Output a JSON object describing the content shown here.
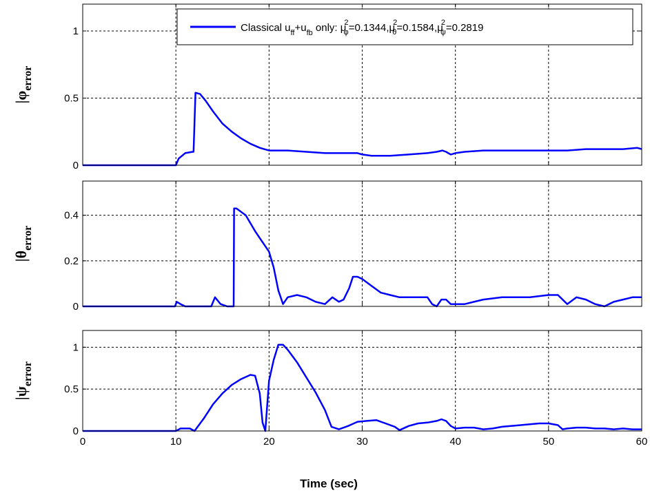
{
  "figure": {
    "xlabel": "Time (sec)",
    "line_color": "#0000ff",
    "legend": {
      "label": "Classical u",
      "sub_ff": "ff",
      "plus": "+u",
      "sub_fb": "fb",
      "mid": " only:  μ",
      "sup2": "2",
      "phi_sub": "φ",
      "phi_val": "=0.1344,μ",
      "theta_sub": "θ",
      "theta_val": "=0.1584,μ",
      "psi_sub": "ψ",
      "psi_val": "=0.2819"
    }
  },
  "chart_data": [
    {
      "type": "line",
      "ylabel_base": "|φ",
      "ylabel_sub": "error",
      "xlim": [
        0,
        60
      ],
      "ylim": [
        0,
        1.2
      ],
      "yticks": [
        0,
        0.5,
        1
      ],
      "ytick_labels": [
        "0",
        "0.5",
        "1"
      ],
      "xticks": [
        0,
        10,
        20,
        30,
        40,
        50,
        60
      ],
      "xtick_labels": [],
      "grid": true,
      "legend_position": "top-right",
      "series": [
        {
          "x": [
            0,
            10,
            10.3,
            11,
            11.8,
            11.9,
            12.1,
            12.6,
            13.2,
            14,
            15,
            16,
            17,
            18,
            19,
            20,
            22,
            24,
            26,
            28,
            29.5,
            30,
            31,
            33,
            35,
            37,
            38,
            38.6,
            39,
            39.5,
            40,
            41,
            43,
            45,
            48,
            50,
            52,
            54,
            56,
            58,
            59.5,
            60
          ],
          "y": [
            0,
            0,
            0.05,
            0.09,
            0.1,
            0.1,
            0.54,
            0.53,
            0.48,
            0.4,
            0.31,
            0.25,
            0.2,
            0.16,
            0.13,
            0.11,
            0.11,
            0.1,
            0.09,
            0.09,
            0.09,
            0.08,
            0.07,
            0.07,
            0.08,
            0.09,
            0.1,
            0.11,
            0.1,
            0.08,
            0.09,
            0.1,
            0.11,
            0.11,
            0.11,
            0.11,
            0.11,
            0.12,
            0.12,
            0.12,
            0.13,
            0.12
          ]
        }
      ]
    },
    {
      "type": "line",
      "ylabel_base": "|θ",
      "ylabel_sub": "error",
      "xlim": [
        0,
        60
      ],
      "ylim": [
        0,
        0.55
      ],
      "yticks": [
        0,
        0.2,
        0.4
      ],
      "ytick_labels": [
        "0",
        "0.2",
        "0.4"
      ],
      "xticks": [
        0,
        10,
        20,
        30,
        40,
        50,
        60
      ],
      "xtick_labels": [],
      "grid": true,
      "series": [
        {
          "x": [
            0,
            9.9,
            10.1,
            10.5,
            11,
            12,
            13,
            13.8,
            14.2,
            14.8,
            15.5,
            16.2,
            16.25,
            16.5,
            17.5,
            18.5,
            19.5,
            20,
            20.5,
            21,
            21.5,
            22,
            23,
            24,
            25,
            26,
            26.8,
            27.5,
            28,
            28.6,
            29,
            29.5,
            30,
            31,
            32,
            33,
            34,
            35,
            36,
            37,
            37.5,
            38,
            38.5,
            39,
            39.5,
            40,
            41,
            42,
            43,
            45,
            48,
            50,
            51,
            52,
            53,
            54,
            55,
            56,
            57,
            58,
            59,
            60
          ],
          "y": [
            0,
            0,
            0.02,
            0.01,
            0,
            0,
            0,
            0,
            0.04,
            0.01,
            0,
            0,
            0.43,
            0.43,
            0.4,
            0.33,
            0.27,
            0.24,
            0.17,
            0.07,
            0.01,
            0.04,
            0.05,
            0.04,
            0.02,
            0.01,
            0.04,
            0.02,
            0.03,
            0.08,
            0.13,
            0.13,
            0.12,
            0.09,
            0.06,
            0.05,
            0.04,
            0.04,
            0.04,
            0.04,
            0.01,
            0,
            0.03,
            0.03,
            0.01,
            0.01,
            0.01,
            0.02,
            0.03,
            0.04,
            0.04,
            0.05,
            0.05,
            0.01,
            0.04,
            0.03,
            0.01,
            0.0,
            0.02,
            0.03,
            0.04,
            0.04
          ]
        }
      ]
    },
    {
      "type": "line",
      "ylabel_base": "|ψ",
      "ylabel_sub": "error",
      "xlim": [
        0,
        60
      ],
      "ylim": [
        0,
        1.2
      ],
      "yticks": [
        0,
        0.5,
        1
      ],
      "ytick_labels": [
        "0",
        "0.5",
        "1"
      ],
      "xticks": [
        0,
        10,
        20,
        30,
        40,
        50,
        60
      ],
      "xtick_labels": [
        "0",
        "10",
        "20",
        "30",
        "40",
        "50",
        "60"
      ],
      "grid": true,
      "series": [
        {
          "x": [
            0,
            10,
            10.5,
            11.5,
            12,
            13,
            14,
            15,
            16,
            17,
            18,
            18.5,
            19,
            19.3,
            19.6,
            20,
            20.5,
            21,
            21.5,
            22,
            23,
            24,
            25,
            26,
            26.7,
            27.5,
            28.5,
            29.5,
            30.5,
            31.5,
            32.5,
            33.5,
            34,
            35,
            36,
            37,
            38,
            38.5,
            39,
            39.5,
            40,
            41,
            42,
            43,
            44,
            45,
            47,
            49,
            50,
            51,
            51.5,
            52,
            53,
            54,
            55,
            56,
            57,
            58,
            59,
            60
          ],
          "y": [
            0,
            0,
            0.03,
            0.03,
            0,
            0.15,
            0.32,
            0.45,
            0.55,
            0.62,
            0.67,
            0.66,
            0.45,
            0.1,
            0.0,
            0.6,
            0.85,
            1.03,
            1.03,
            0.97,
            0.82,
            0.64,
            0.46,
            0.25,
            0.05,
            0.02,
            0.06,
            0.11,
            0.12,
            0.13,
            0.09,
            0.05,
            0.01,
            0.06,
            0.09,
            0.1,
            0.12,
            0.14,
            0.12,
            0.06,
            0.03,
            0.04,
            0.04,
            0.02,
            0.03,
            0.05,
            0.07,
            0.09,
            0.09,
            0.07,
            0.02,
            0.03,
            0.04,
            0.04,
            0.03,
            0.03,
            0.02,
            0.03,
            0.02,
            0.02
          ]
        }
      ]
    }
  ]
}
